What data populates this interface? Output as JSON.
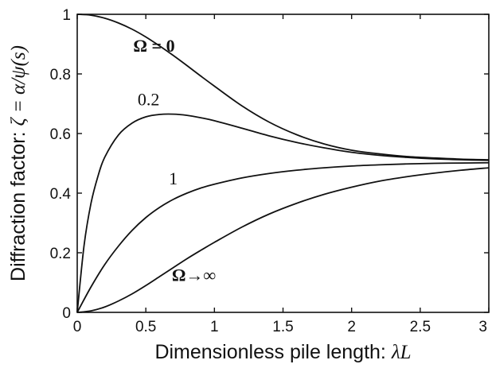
{
  "chart_data": {
    "type": "line",
    "xlabel_text": "Dimensionless pile length: ",
    "xlabel_symbol": "λL",
    "ylabel_text": "Diffraction factor: ",
    "ylabel_symbol": "ζ = α/ψ(s)",
    "xlim": [
      0,
      3
    ],
    "ylim": [
      0,
      1
    ],
    "x_ticks": [
      0,
      0.5,
      1,
      1.5,
      2,
      2.5,
      3
    ],
    "x_tick_labels": [
      "0",
      "0.5",
      "1",
      "1.5",
      "2",
      "2.5",
      "3"
    ],
    "y_ticks": [
      0,
      0.2,
      0.4,
      0.6,
      0.8,
      1
    ],
    "y_tick_labels": [
      "0",
      "0.2",
      "0.4",
      "0.6",
      "0.8",
      "1"
    ],
    "grid": false,
    "legend": "none",
    "series": [
      {
        "name": "Ω=0",
        "x": [
          0,
          0.1,
          0.2,
          0.3,
          0.4,
          0.5,
          0.6,
          0.7,
          0.8,
          0.9,
          1.0,
          1.2,
          1.4,
          1.6,
          1.8,
          2.0,
          2.2,
          2.4,
          2.6,
          2.8,
          3.0
        ],
        "y": [
          1.0,
          0.997,
          0.987,
          0.971,
          0.95,
          0.924,
          0.894,
          0.862,
          0.828,
          0.793,
          0.759,
          0.693,
          0.638,
          0.596,
          0.565,
          0.544,
          0.532,
          0.523,
          0.518,
          0.514,
          0.512
        ]
      },
      {
        "name": "0.2",
        "x": [
          0,
          0.05,
          0.1,
          0.15,
          0.2,
          0.3,
          0.4,
          0.5,
          0.6,
          0.7,
          0.8,
          0.9,
          1.0,
          1.2,
          1.4,
          1.6,
          1.8,
          2.0,
          2.2,
          2.4,
          2.6,
          2.8,
          3.0
        ],
        "y": [
          0,
          0.225,
          0.365,
          0.455,
          0.52,
          0.595,
          0.635,
          0.656,
          0.664,
          0.665,
          0.661,
          0.653,
          0.643,
          0.618,
          0.592,
          0.57,
          0.552,
          0.537,
          0.527,
          0.52,
          0.515,
          0.512,
          0.51
        ]
      },
      {
        "name": "1",
        "x": [
          0,
          0.1,
          0.2,
          0.3,
          0.4,
          0.5,
          0.6,
          0.7,
          0.8,
          0.9,
          1.0,
          1.2,
          1.4,
          1.6,
          1.8,
          2.0,
          2.2,
          2.4,
          2.6,
          2.8,
          3.0
        ],
        "y": [
          0,
          0.085,
          0.16,
          0.222,
          0.275,
          0.318,
          0.352,
          0.379,
          0.4,
          0.417,
          0.43,
          0.451,
          0.466,
          0.477,
          0.485,
          0.491,
          0.495,
          0.498,
          0.5,
          0.501,
          0.502
        ]
      },
      {
        "name": "Ω→∞",
        "x": [
          0,
          0.1,
          0.2,
          0.3,
          0.4,
          0.5,
          0.6,
          0.7,
          0.8,
          0.9,
          1.0,
          1.2,
          1.4,
          1.6,
          1.8,
          2.0,
          2.2,
          2.4,
          2.6,
          2.8,
          3.0
        ],
        "y": [
          0,
          0.005,
          0.018,
          0.038,
          0.062,
          0.09,
          0.12,
          0.15,
          0.18,
          0.208,
          0.235,
          0.286,
          0.33,
          0.366,
          0.396,
          0.42,
          0.44,
          0.455,
          0.467,
          0.477,
          0.485
        ]
      }
    ],
    "annotations": [
      {
        "text": "Ω = 0",
        "series": "Ω=0",
        "x": 0.56,
        "y": 0.875,
        "bold": true
      },
      {
        "text": "0.2",
        "series": "0.2",
        "x": 0.52,
        "y": 0.695,
        "bold": false
      },
      {
        "text": "1",
        "series": "1",
        "x": 0.7,
        "y": 0.43,
        "bold": false
      },
      {
        "text": "Ω→∞",
        "series": "Ω→∞",
        "x": 0.85,
        "y": 0.105,
        "bold": true
      }
    ]
  }
}
